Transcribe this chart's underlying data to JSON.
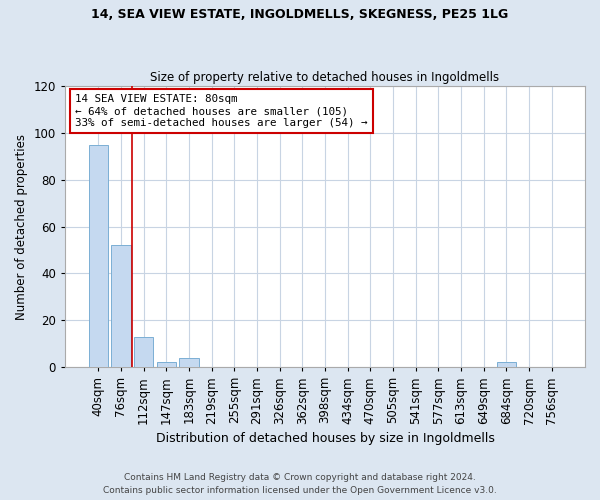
{
  "title1": "14, SEA VIEW ESTATE, INGOLDMELLS, SKEGNESS, PE25 1LG",
  "title2": "Size of property relative to detached houses in Ingoldmells",
  "xlabel": "Distribution of detached houses by size in Ingoldmells",
  "ylabel": "Number of detached properties",
  "bin_labels": [
    "40sqm",
    "76sqm",
    "112sqm",
    "147sqm",
    "183sqm",
    "219sqm",
    "255sqm",
    "291sqm",
    "326sqm",
    "362sqm",
    "398sqm",
    "434sqm",
    "470sqm",
    "505sqm",
    "541sqm",
    "577sqm",
    "613sqm",
    "649sqm",
    "684sqm",
    "720sqm",
    "756sqm"
  ],
  "bar_values": [
    95,
    52,
    13,
    2,
    4,
    0,
    0,
    0,
    0,
    0,
    0,
    0,
    0,
    0,
    0,
    0,
    0,
    0,
    2,
    0,
    0
  ],
  "bar_color": "#c5d9f0",
  "bar_edge_color": "#7bafd4",
  "vline_x": 1.5,
  "vline_color": "#cc0000",
  "annotation_text": "14 SEA VIEW ESTATE: 80sqm\n← 64% of detached houses are smaller (105)\n33% of semi-detached houses are larger (54) →",
  "annotation_box_facecolor": "#ffffff",
  "annotation_box_edgecolor": "#cc0000",
  "ylim": [
    0,
    120
  ],
  "yticks": [
    0,
    20,
    40,
    60,
    80,
    100,
    120
  ],
  "footer": "Contains HM Land Registry data © Crown copyright and database right 2024.\nContains public sector information licensed under the Open Government Licence v3.0.",
  "fig_bg_color": "#dce6f1",
  "plot_bg_color": "#ffffff",
  "grid_color": "#c8d4e3"
}
